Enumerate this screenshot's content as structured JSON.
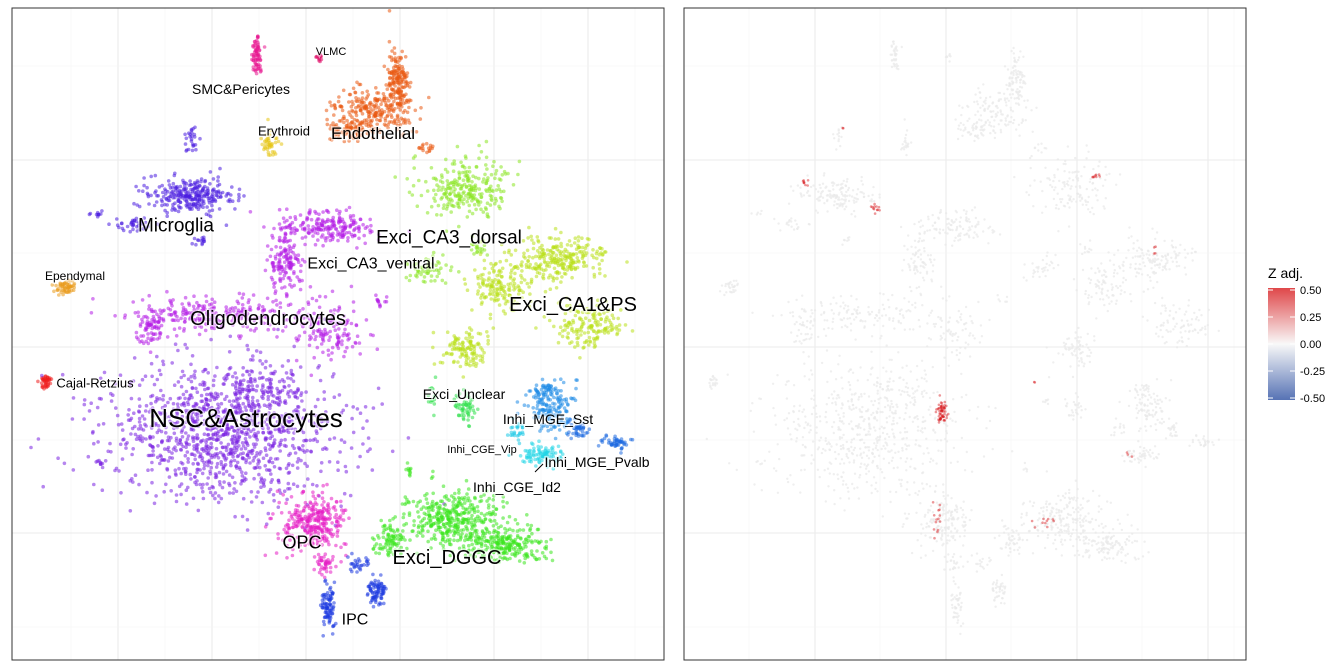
{
  "chart_data": [
    {
      "type": "scatter",
      "panel": "left",
      "title": "",
      "xlabel": "",
      "ylabel": "",
      "grid": true,
      "legend": "none",
      "clusters": [
        {
          "name": "SMC&Pericytes",
          "color": "#e8168f",
          "label": "SMC&Pericytes",
          "label_size": "small"
        },
        {
          "name": "VLMC",
          "color": "#e0116a",
          "label": "VLMC",
          "label_size": "tiny"
        },
        {
          "name": "Endothelial",
          "color": "#ea5a12",
          "label": "Endothelial",
          "label_size": "medium"
        },
        {
          "name": "Erythroid",
          "color": "#e6c512",
          "label": "Erythroid",
          "label_size": "small"
        },
        {
          "name": "Microglia",
          "color": "#4a1ee0",
          "label": "Microglia",
          "label_size": "medium"
        },
        {
          "name": "Ependymal",
          "color": "#ea9a1c",
          "label": "Ependymal",
          "label_size": "small"
        },
        {
          "name": "Cajal-Retzius",
          "color": "#ee1c1c",
          "label": "Cajal-Retzius",
          "label_size": "small"
        },
        {
          "name": "Oligodendrocytes",
          "color": "#b51ee6",
          "label": "Oligodendrocytes",
          "label_size": "large"
        },
        {
          "name": "NSC&Astrocytes",
          "color": "#7a22e2",
          "label": "NSC&Astrocytes",
          "label_size": "xlarge"
        },
        {
          "name": "Exci_CA3_dorsal",
          "color": "#8ae622",
          "label": "Exci_CA3_dorsal",
          "label_size": "large"
        },
        {
          "name": "Exci_CA3_ventral",
          "color": "#b51ee6",
          "label": "Exci_CA3_ventral",
          "label_size": "medium"
        },
        {
          "name": "Exci_CA1&PS",
          "color": "#b9e01a",
          "label": "Exci_CA1&PS",
          "label_size": "large"
        },
        {
          "name": "Exci_Unclear",
          "color": "#2ee04a",
          "label": "Exci_Unclear",
          "label_size": "small"
        },
        {
          "name": "Inhi_MGE_Sst",
          "color": "#1e8ae6",
          "label": "Inhi_MGE_Sst",
          "label_size": "small"
        },
        {
          "name": "Inhi_CGE_Vip",
          "color": "#1ec8e6",
          "label": "Inhi_CGE_Vip",
          "label_size": "tiny"
        },
        {
          "name": "Inhi_MGE_Pvalb",
          "color": "#1e6ae0",
          "label": "Inhi_MGE_Pvalb",
          "label_size": "small"
        },
        {
          "name": "Inhi_CGE_Id2",
          "color": "#22d6e6",
          "label": "Inhi_CGE_Id2",
          "label_size": "small"
        },
        {
          "name": "OPC",
          "color": "#e61ec4",
          "label": "OPC",
          "label_size": "medium"
        },
        {
          "name": "Exci_DGGC",
          "color": "#3ae61e",
          "label": "Exci_DGGC",
          "label_size": "large"
        },
        {
          "name": "IPC",
          "color": "#1e3ae0",
          "label": "IPC",
          "label_size": "small"
        }
      ]
    },
    {
      "type": "scatter",
      "panel": "right",
      "title": "",
      "xlabel": "",
      "ylabel": "",
      "grid": true,
      "colorbar": {
        "title": "Z adj.",
        "ticks": [
          "0.50",
          "0.25",
          "0.00",
          "-0.25",
          "-0.50"
        ],
        "range": [
          -0.5,
          0.5
        ],
        "colors": [
          "#2c4fa2",
          "#f7f7f7",
          "#d7191c"
        ]
      }
    }
  ]
}
